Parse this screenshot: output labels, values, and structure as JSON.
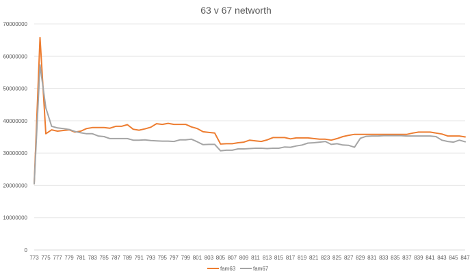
{
  "chart_data": {
    "type": "line",
    "title": "63 v 67 networth",
    "xlabel": "",
    "ylabel": "",
    "ylim": [
      0,
      70000000
    ],
    "y_ticks": [
      "0",
      "10000000",
      "20000000",
      "30000000",
      "40000000",
      "50000000",
      "60000000",
      "70000000"
    ],
    "y_tick_values": [
      0,
      10000000,
      20000000,
      30000000,
      40000000,
      50000000,
      60000000,
      70000000
    ],
    "x": [
      773,
      774,
      775,
      776,
      777,
      778,
      779,
      780,
      781,
      782,
      783,
      784,
      785,
      786,
      787,
      788,
      789,
      790,
      791,
      792,
      793,
      794,
      795,
      796,
      797,
      798,
      799,
      800,
      801,
      802,
      803,
      804,
      805,
      806,
      807,
      808,
      809,
      810,
      811,
      812,
      813,
      814,
      815,
      816,
      817,
      818,
      819,
      820,
      821,
      822,
      823,
      824,
      825,
      826,
      827,
      828,
      829,
      830,
      831,
      832,
      833,
      834,
      835,
      836,
      837,
      838,
      839,
      840,
      841,
      842,
      843,
      844,
      845,
      846,
      847
    ],
    "x_tick_labels": [
      "773",
      "775",
      "777",
      "779",
      "781",
      "783",
      "785",
      "787",
      "789",
      "791",
      "793",
      "795",
      "797",
      "799",
      "801",
      "803",
      "805",
      "807",
      "809",
      "811",
      "813",
      "815",
      "817",
      "819",
      "821",
      "823",
      "825",
      "827",
      "829",
      "831",
      "833",
      "835",
      "837",
      "839",
      "841",
      "843",
      "845",
      "847"
    ],
    "grid": true,
    "legend_position": "bottom",
    "series": [
      {
        "name": "fam63",
        "color": "#ED7D31",
        "values": [
          20500000,
          65800000,
          36000000,
          37200000,
          36800000,
          37000000,
          37200000,
          36500000,
          36800000,
          37600000,
          37900000,
          37900000,
          37900000,
          37700000,
          38300000,
          38300000,
          38800000,
          37400000,
          37100000,
          37500000,
          38000000,
          39100000,
          38900000,
          39200000,
          38900000,
          38900000,
          38900000,
          38100000,
          37600000,
          36600000,
          36400000,
          36200000,
          32800000,
          32900000,
          32900000,
          33200000,
          33400000,
          34000000,
          33800000,
          33600000,
          34100000,
          34800000,
          34800000,
          34800000,
          34400000,
          34700000,
          34700000,
          34700000,
          34500000,
          34300000,
          34300000,
          34000000,
          34500000,
          35100000,
          35500000,
          35800000,
          35800000,
          35800000,
          35800000,
          35800000,
          35800000,
          35800000,
          35800000,
          35800000,
          35800000,
          36200000,
          36500000,
          36500000,
          36500000,
          36200000,
          35900000,
          35300000,
          35300000,
          35300000,
          35000000
        ]
      },
      {
        "name": "fam67",
        "color": "#A5A5A5",
        "values": [
          20500000,
          57300000,
          44000000,
          38300000,
          37800000,
          37600000,
          37300000,
          36700000,
          36300000,
          36000000,
          36000000,
          35300000,
          35100000,
          34500000,
          34500000,
          34500000,
          34500000,
          34000000,
          34000000,
          34100000,
          33900000,
          33800000,
          33700000,
          33700000,
          33600000,
          34100000,
          34100000,
          34300000,
          33500000,
          32600000,
          32700000,
          32700000,
          30700000,
          30900000,
          30900000,
          31300000,
          31300000,
          31400000,
          31500000,
          31500000,
          31400000,
          31500000,
          31500000,
          31900000,
          31800000,
          32200000,
          32500000,
          33100000,
          33200000,
          33400000,
          33600000,
          32700000,
          32900000,
          32500000,
          32400000,
          31800000,
          34600000,
          35200000,
          35300000,
          35300000,
          35400000,
          35400000,
          35400000,
          35400000,
          35300000,
          35300000,
          35300000,
          35300000,
          35300000,
          35100000,
          34000000,
          33600000,
          33400000,
          34000000,
          33500000
        ]
      }
    ]
  }
}
